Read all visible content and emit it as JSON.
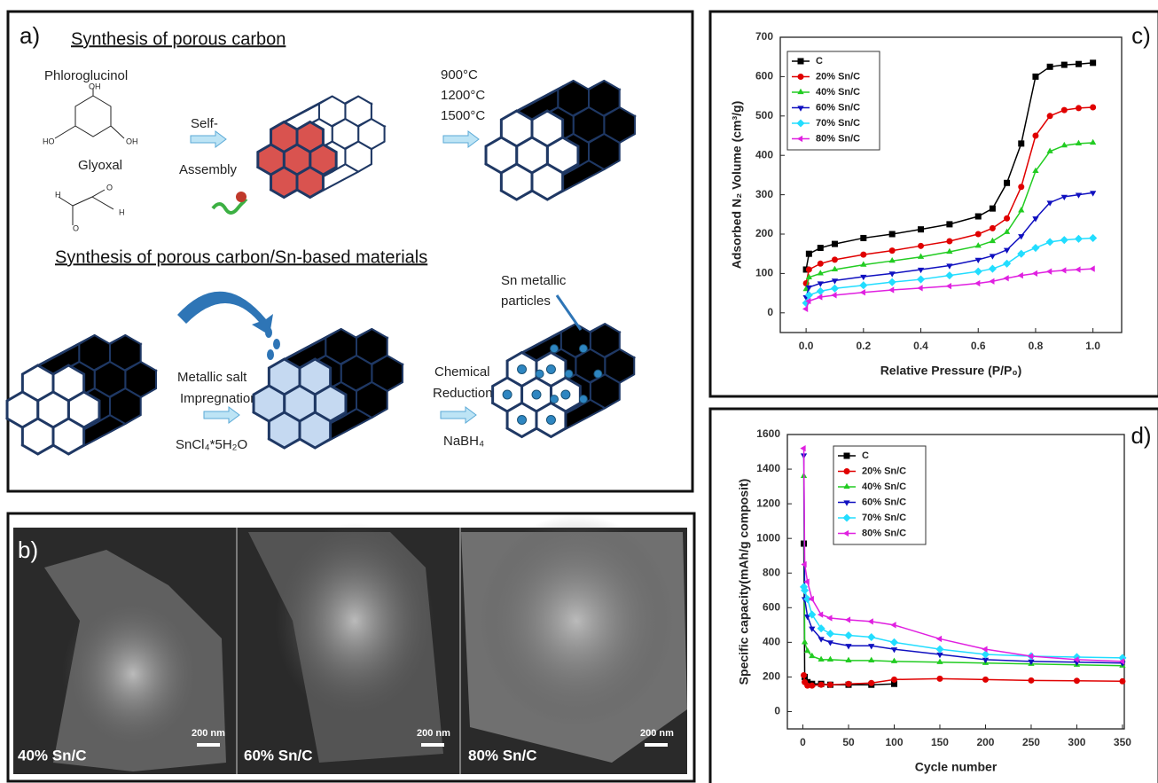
{
  "panel_a": {
    "label": "a)",
    "heading_1": "Synthesis of porous carbon",
    "precursor_1": "Phloroglucinol",
    "precursor_2": "Glyoxal",
    "phloroglucinol_groups": [
      "OH",
      "HO",
      "OH"
    ],
    "glyoxal_atoms": [
      "H",
      "O",
      "O",
      "H"
    ],
    "step_1": [
      "Self-",
      "Assembly"
    ],
    "temperatures": [
      "900°C",
      "1200°C",
      "1500°C"
    ],
    "heading_2": "Synthesis of porous carbon/Sn-based materials",
    "particles_note": [
      "Sn metallic",
      "particles"
    ],
    "step_2": [
      "Metallic salt",
      "Impregnation"
    ],
    "salt": "SnCl₄*5H₂O",
    "step_3": [
      "Chemical",
      "Reduction"
    ],
    "reductant": "NaBH₄"
  },
  "panel_b": {
    "label": "b)",
    "images": [
      {
        "caption": "40% Sn/C",
        "scale": "200 nm"
      },
      {
        "caption": "60% Sn/C",
        "scale": "200 nm"
      },
      {
        "caption": "80% Sn/C",
        "scale": "200 nm"
      }
    ]
  },
  "chart_data": [
    {
      "type": "line",
      "panel_label": "c)",
      "x_label": "Relative Pressure (P/P₀)",
      "y_label": "Adsorbed N₂ Volume (cm³/g)",
      "x": [
        0,
        0.01,
        0.05,
        0.1,
        0.2,
        0.3,
        0.4,
        0.5,
        0.6,
        0.65,
        0.7,
        0.75,
        0.8,
        0.85,
        0.9,
        0.95,
        1.0
      ],
      "xlim": [
        -0.09,
        1.1
      ],
      "ylim": [
        -50,
        700
      ],
      "xticks": [
        {
          "value": 0,
          "label": "0.0"
        },
        {
          "value": 0.2,
          "label": "0.2"
        },
        {
          "value": 0.4,
          "label": "0.4"
        },
        {
          "value": 0.6,
          "label": "0.6"
        },
        {
          "value": 0.8,
          "label": "0.8"
        },
        {
          "value": 1,
          "label": "1.0"
        }
      ],
      "yticks": [
        0,
        100,
        200,
        300,
        400,
        500,
        600,
        700
      ],
      "legend": "upper left",
      "series": [
        {
          "name": "C",
          "color": "#000000",
          "marker": "square",
          "values": [
            110,
            150,
            165,
            175,
            190,
            200,
            212,
            225,
            245,
            265,
            330,
            430,
            600,
            625,
            630,
            632,
            635
          ]
        },
        {
          "name": "20% Sn/C",
          "color": "#e00000",
          "marker": "circle",
          "values": [
            75,
            110,
            125,
            135,
            148,
            158,
            170,
            182,
            200,
            215,
            240,
            320,
            450,
            500,
            515,
            520,
            522
          ]
        },
        {
          "name": "40% Sn/C",
          "color": "#22cc22",
          "marker": "triangle-up",
          "values": [
            60,
            90,
            100,
            110,
            122,
            132,
            142,
            155,
            170,
            182,
            205,
            260,
            360,
            410,
            425,
            430,
            432
          ]
        },
        {
          "name": "60% Sn/C",
          "color": "#1010c0",
          "marker": "triangle-down",
          "values": [
            40,
            65,
            75,
            82,
            92,
            100,
            110,
            120,
            135,
            145,
            160,
            195,
            240,
            280,
            295,
            300,
            305
          ]
        },
        {
          "name": "70% Sn/C",
          "color": "#22ddff",
          "marker": "diamond",
          "values": [
            25,
            45,
            55,
            62,
            70,
            78,
            85,
            95,
            105,
            112,
            125,
            150,
            165,
            180,
            185,
            188,
            190
          ]
        },
        {
          "name": "80% Sn/C",
          "color": "#e020e0",
          "marker": "triangle-left",
          "values": [
            10,
            30,
            40,
            45,
            52,
            58,
            63,
            68,
            75,
            80,
            88,
            95,
            100,
            105,
            108,
            110,
            112
          ]
        }
      ]
    },
    {
      "type": "line",
      "panel_label": "d)",
      "x_label": "Cycle number",
      "y_label": "Specific capacity(mAh/g composit)",
      "x": [
        1,
        2,
        5,
        10,
        20,
        30,
        50,
        75,
        100,
        150,
        200,
        250,
        300,
        350
      ],
      "xlim": [
        -17,
        352
      ],
      "ylim": [
        -100,
        1600
      ],
      "xticks": [
        0,
        50,
        100,
        150,
        200,
        250,
        300,
        350
      ],
      "yticks": [
        0,
        200,
        400,
        600,
        800,
        1000,
        1200,
        1400,
        1600
      ],
      "legend": "upper left",
      "series": [
        {
          "name": "C",
          "color": "#000000",
          "marker": "square",
          "values": [
            970,
            200,
            170,
            160,
            160,
            155,
            155,
            155,
            160,
            null,
            null,
            null,
            null,
            null
          ]
        },
        {
          "name": "20% Sn/C",
          "color": "#e00000",
          "marker": "circle",
          "values": [
            210,
            170,
            150,
            150,
            155,
            155,
            160,
            165,
            185,
            190,
            185,
            180,
            178,
            175
          ]
        },
        {
          "name": "40% Sn/C",
          "color": "#22cc22",
          "marker": "triangle-up",
          "values": [
            1360,
            400,
            350,
            320,
            300,
            300,
            295,
            295,
            290,
            285,
            280,
            275,
            270,
            265
          ]
        },
        {
          "name": "60% Sn/C",
          "color": "#1010c0",
          "marker": "triangle-down",
          "values": [
            1480,
            650,
            550,
            480,
            420,
            400,
            380,
            380,
            360,
            330,
            300,
            290,
            285,
            280
          ]
        },
        {
          "name": "70% Sn/C",
          "color": "#22ddff",
          "marker": "diamond",
          "values": [
            720,
            700,
            650,
            560,
            480,
            450,
            440,
            430,
            400,
            360,
            330,
            320,
            315,
            310
          ]
        },
        {
          "name": "80% Sn/C",
          "color": "#e020e0",
          "marker": "triangle-left",
          "values": [
            1520,
            850,
            750,
            650,
            560,
            540,
            530,
            520,
            500,
            420,
            360,
            320,
            300,
            290
          ]
        }
      ]
    }
  ]
}
